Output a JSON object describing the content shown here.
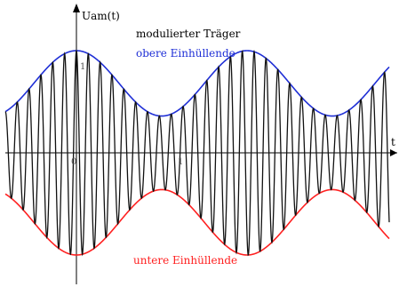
{
  "chart_data": {
    "type": "line",
    "title": "",
    "xlabel": "t",
    "ylabel": "Uam(t)",
    "tick_labels": {
      "y_top": "1",
      "x_origin": "0",
      "x_mid": "1"
    },
    "x_range": [
      -1.0,
      4.4
    ],
    "ylim": [
      -1.15,
      1.3
    ],
    "carrier_cycles_per_unit": 6.0,
    "modulation": {
      "mean": 0.68,
      "depth": 0.32,
      "period": 2.4,
      "peak_x": 0.0
    },
    "legend": "top-right",
    "series": [
      {
        "name": "modulierter Träger",
        "color": "#000000"
      },
      {
        "name": "obere Einhüllende",
        "color": "#1f2fd6"
      },
      {
        "name": "untere Einhüllende",
        "color": "#ff2020"
      }
    ]
  }
}
